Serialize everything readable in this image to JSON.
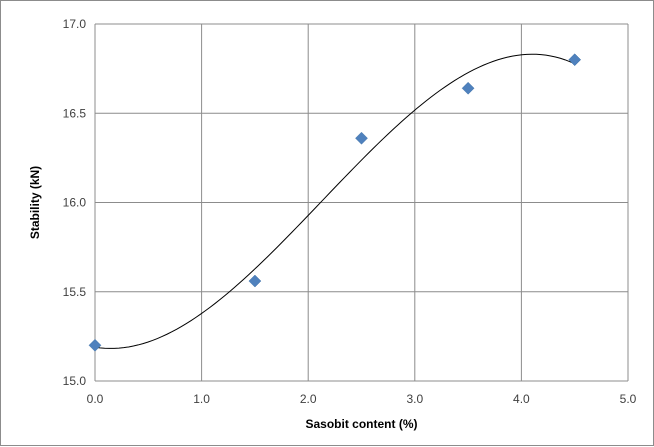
{
  "chart_data": {
    "type": "scatter",
    "title": "",
    "xlabel": "Sasobit content (%)",
    "ylabel": "Stability (kN)",
    "xlim": [
      0,
      5
    ],
    "ylim": [
      15,
      17
    ],
    "x_ticks": [
      "0.0",
      "1.0",
      "2.0",
      "3.0",
      "4.0",
      "5.0"
    ],
    "y_ticks": [
      "15.0",
      "15.5",
      "16.0",
      "16.5",
      "17.0"
    ],
    "grid": true,
    "marker_color": "#4f81bd",
    "trendline": {
      "type": "polynomial",
      "color": "#000000"
    },
    "series": [
      {
        "x": [
          0.0,
          1.5,
          2.5,
          3.5,
          4.5
        ],
        "y": [
          15.2,
          15.56,
          16.36,
          16.64,
          16.8
        ]
      }
    ]
  }
}
